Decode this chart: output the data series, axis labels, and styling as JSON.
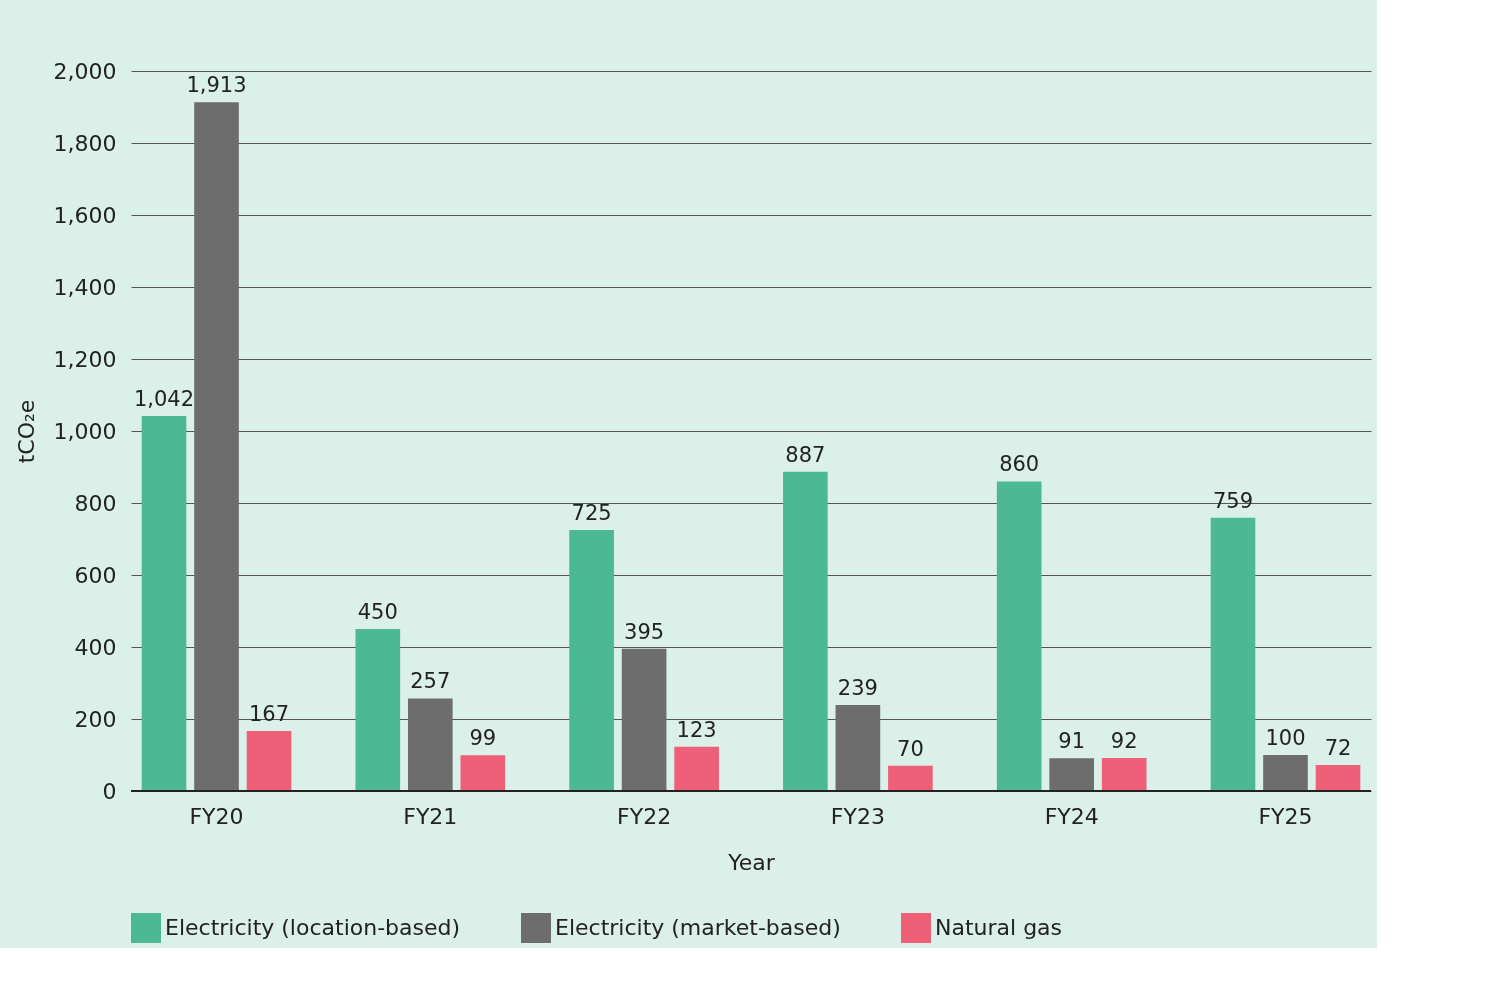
{
  "chart_data": {
    "type": "bar",
    "xlabel": "Year",
    "ylabel": "tCO₂e",
    "categories": [
      "FY20",
      "FY21",
      "FY22",
      "FY23",
      "FY24",
      "FY25"
    ],
    "series": [
      {
        "name": "Electricity (location-based)",
        "color": "#4cb994",
        "values": [
          1042,
          450,
          725,
          887,
          860,
          759
        ],
        "value_labels": [
          "1,042",
          "450",
          "725",
          "887",
          "860",
          "759"
        ]
      },
      {
        "name": "Electricity (market-based)",
        "color": "#6d6d6d",
        "values": [
          1913,
          257,
          395,
          239,
          91,
          100
        ],
        "value_labels": [
          "1,913",
          "257",
          "395",
          "239",
          "91",
          "100"
        ]
      },
      {
        "name": "Natural gas",
        "color": "#ee5f78",
        "values": [
          167,
          99,
          123,
          70,
          92,
          72
        ],
        "value_labels": [
          "167",
          "99",
          "123",
          "70",
          "92",
          "72"
        ]
      }
    ],
    "ylim": [
      0,
      2000
    ],
    "yticks": [
      0,
      200,
      400,
      600,
      800,
      {
        "value": 1000,
        "label": "1,000"
      },
      {
        "value": 1200,
        "label": "1,200"
      },
      {
        "value": 1400,
        "label": "1,400"
      },
      {
        "value": 1600,
        "label": "1,600"
      },
      {
        "value": 1800,
        "label": "1,800"
      },
      {
        "value": 2000,
        "label": "2,000"
      }
    ],
    "grid": "y",
    "legend": "bottom"
  }
}
